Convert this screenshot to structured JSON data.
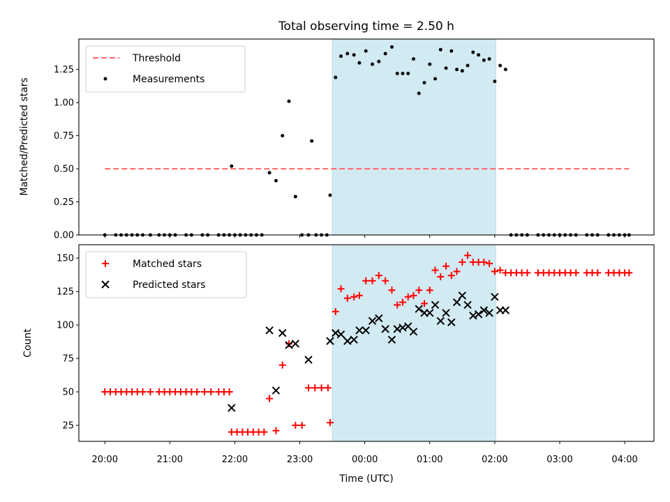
{
  "chart_data": [
    {
      "type": "scatter",
      "title": "Total observing time = 2.50 h",
      "xlabel": "",
      "ylabel": "Matched/Predicted stars",
      "xlim": [
        "19:36",
        "04:27"
      ],
      "ylim": [
        0,
        1.48
      ],
      "y_ticks": [
        "0.00",
        "0.25",
        "0.50",
        "0.75",
        "1.00",
        "1.25"
      ],
      "x_ticks": [
        "20:00",
        "21:00",
        "22:00",
        "23:00",
        "00:00",
        "01:00",
        "02:00",
        "03:00",
        "04:00"
      ],
      "shaded_region": {
        "start": "23:30",
        "end": "02:01",
        "color": "#add8e6"
      },
      "legend_position": "upper-left",
      "threshold": {
        "name": "Threshold",
        "value": 0.5,
        "x_start": "20:00",
        "x_end": "04:04",
        "color": "#ff6666"
      },
      "series": [
        {
          "name": "Measurements",
          "color": "#000000",
          "points": [
            [
              "20:00",
              0
            ],
            [
              "20:10",
              0
            ],
            [
              "20:15",
              0
            ],
            [
              "20:20",
              0
            ],
            [
              "20:25",
              0
            ],
            [
              "20:30",
              0
            ],
            [
              "20:35",
              0
            ],
            [
              "20:42",
              0
            ],
            [
              "20:50",
              0
            ],
            [
              "20:55",
              0
            ],
            [
              "21:00",
              0
            ],
            [
              "21:05",
              0
            ],
            [
              "21:15",
              0
            ],
            [
              "21:20",
              0
            ],
            [
              "21:30",
              0
            ],
            [
              "21:35",
              0
            ],
            [
              "21:45",
              0
            ],
            [
              "21:50",
              0
            ],
            [
              "21:55",
              0
            ],
            [
              "21:57",
              0.52
            ],
            [
              "22:00",
              0
            ],
            [
              "22:05",
              0
            ],
            [
              "22:10",
              0
            ],
            [
              "22:15",
              0
            ],
            [
              "22:20",
              0
            ],
            [
              "22:25",
              0
            ],
            [
              "22:32",
              0.47
            ],
            [
              "22:38",
              0.41
            ],
            [
              "22:44",
              0.75
            ],
            [
              "22:50",
              1.01
            ],
            [
              "22:56",
              0.29
            ],
            [
              "23:02",
              0
            ],
            [
              "23:08",
              0
            ],
            [
              "23:11",
              0.71
            ],
            [
              "23:15",
              0
            ],
            [
              "23:20",
              0
            ],
            [
              "23:25",
              0
            ],
            [
              "23:28",
              0.3
            ],
            [
              "23:33",
              1.19
            ],
            [
              "23:38",
              1.35
            ],
            [
              "23:44",
              1.37
            ],
            [
              "23:50",
              1.36
            ],
            [
              "23:55",
              1.3
            ],
            [
              "00:01",
              1.39
            ],
            [
              "00:07",
              1.29
            ],
            [
              "00:13",
              1.31
            ],
            [
              "00:19",
              1.37
            ],
            [
              "00:25",
              1.42
            ],
            [
              "00:30",
              1.22
            ],
            [
              "00:35",
              1.22
            ],
            [
              "00:40",
              1.22
            ],
            [
              "00:45",
              1.33
            ],
            [
              "00:50",
              1.07
            ],
            [
              "00:55",
              1.15
            ],
            [
              "01:00",
              1.29
            ],
            [
              "01:05",
              1.18
            ],
            [
              "01:10",
              1.4
            ],
            [
              "01:15",
              1.26
            ],
            [
              "01:20",
              1.39
            ],
            [
              "01:25",
              1.25
            ],
            [
              "01:30",
              1.24
            ],
            [
              "01:35",
              1.28
            ],
            [
              "01:40",
              1.38
            ],
            [
              "01:45",
              1.36
            ],
            [
              "01:50",
              1.32
            ],
            [
              "01:55",
              1.33
            ],
            [
              "02:00",
              1.16
            ],
            [
              "02:05",
              1.28
            ],
            [
              "02:10",
              1.25
            ],
            [
              "02:15",
              0
            ],
            [
              "02:20",
              0
            ],
            [
              "02:25",
              0
            ],
            [
              "02:30",
              0
            ],
            [
              "02:40",
              0
            ],
            [
              "02:45",
              0
            ],
            [
              "02:50",
              0
            ],
            [
              "02:55",
              0
            ],
            [
              "03:00",
              0
            ],
            [
              "03:05",
              0
            ],
            [
              "03:10",
              0
            ],
            [
              "03:15",
              0
            ],
            [
              "03:25",
              0
            ],
            [
              "03:30",
              0
            ],
            [
              "03:35",
              0
            ],
            [
              "03:45",
              0
            ],
            [
              "03:50",
              0
            ],
            [
              "03:55",
              0
            ],
            [
              "04:00",
              0
            ],
            [
              "04:04",
              0
            ]
          ]
        }
      ]
    },
    {
      "type": "scatter",
      "title": "",
      "xlabel": "Time (UTC)",
      "ylabel": "Count",
      "xlim": [
        "19:36",
        "04:27"
      ],
      "ylim": [
        13,
        160
      ],
      "y_ticks": [
        "25",
        "50",
        "75",
        "100",
        "125",
        "150"
      ],
      "x_ticks": [
        "20:00",
        "21:00",
        "22:00",
        "23:00",
        "00:00",
        "01:00",
        "02:00",
        "03:00",
        "04:00"
      ],
      "shaded_region": {
        "start": "23:30",
        "end": "02:01",
        "color": "#add8e6"
      },
      "legend_position": "upper-left",
      "series": [
        {
          "name": "Matched stars",
          "color": "#ff0000",
          "marker": "+",
          "points": [
            [
              "20:00",
              50
            ],
            [
              "20:05",
              50
            ],
            [
              "20:10",
              50
            ],
            [
              "20:15",
              50
            ],
            [
              "20:20",
              50
            ],
            [
              "20:25",
              50
            ],
            [
              "20:30",
              50
            ],
            [
              "20:35",
              50
            ],
            [
              "20:42",
              50
            ],
            [
              "20:50",
              50
            ],
            [
              "20:55",
              50
            ],
            [
              "21:00",
              50
            ],
            [
              "21:05",
              50
            ],
            [
              "21:10",
              50
            ],
            [
              "21:15",
              50
            ],
            [
              "21:20",
              50
            ],
            [
              "21:25",
              50
            ],
            [
              "21:32",
              50
            ],
            [
              "21:38",
              50
            ],
            [
              "21:45",
              50
            ],
            [
              "21:50",
              50
            ],
            [
              "21:55",
              50
            ],
            [
              "21:57",
              20
            ],
            [
              "22:02",
              20
            ],
            [
              "22:07",
              20
            ],
            [
              "22:12",
              20
            ],
            [
              "22:17",
              20
            ],
            [
              "22:22",
              20
            ],
            [
              "22:27",
              20
            ],
            [
              "22:32",
              45
            ],
            [
              "22:38",
              21
            ],
            [
              "22:44",
              70
            ],
            [
              "22:50",
              86
            ],
            [
              "22:56",
              25
            ],
            [
              "23:02",
              25
            ],
            [
              "23:08",
              53
            ],
            [
              "23:14",
              53
            ],
            [
              "23:20",
              53
            ],
            [
              "23:26",
              53
            ],
            [
              "23:28",
              27
            ],
            [
              "23:33",
              110
            ],
            [
              "23:38",
              127
            ],
            [
              "23:44",
              120
            ],
            [
              "23:50",
              121
            ],
            [
              "23:55",
              122
            ],
            [
              "00:01",
              133
            ],
            [
              "00:07",
              133
            ],
            [
              "00:13",
              137
            ],
            [
              "00:19",
              133
            ],
            [
              "00:25",
              126
            ],
            [
              "00:30",
              115
            ],
            [
              "00:35",
              117
            ],
            [
              "00:40",
              121
            ],
            [
              "00:45",
              122
            ],
            [
              "00:50",
              126
            ],
            [
              "00:55",
              116
            ],
            [
              "01:00",
              126
            ],
            [
              "01:05",
              141
            ],
            [
              "01:10",
              136
            ],
            [
              "01:15",
              144
            ],
            [
              "01:20",
              137
            ],
            [
              "01:25",
              140
            ],
            [
              "01:30",
              147
            ],
            [
              "01:35",
              152
            ],
            [
              "01:40",
              147
            ],
            [
              "01:45",
              147
            ],
            [
              "01:50",
              147
            ],
            [
              "01:55",
              146
            ],
            [
              "02:00",
              140
            ],
            [
              "02:05",
              141
            ],
            [
              "02:10",
              139
            ],
            [
              "02:15",
              139
            ],
            [
              "02:20",
              139
            ],
            [
              "02:25",
              139
            ],
            [
              "02:30",
              139
            ],
            [
              "02:40",
              139
            ],
            [
              "02:45",
              139
            ],
            [
              "02:50",
              139
            ],
            [
              "02:55",
              139
            ],
            [
              "03:00",
              139
            ],
            [
              "03:05",
              139
            ],
            [
              "03:10",
              139
            ],
            [
              "03:15",
              139
            ],
            [
              "03:25",
              139
            ],
            [
              "03:30",
              139
            ],
            [
              "03:35",
              139
            ],
            [
              "03:45",
              139
            ],
            [
              "03:50",
              139
            ],
            [
              "03:55",
              139
            ],
            [
              "04:00",
              139
            ],
            [
              "04:04",
              139
            ]
          ]
        },
        {
          "name": "Predicted stars",
          "color": "#000000",
          "marker": "x",
          "points": [
            [
              "21:57",
              38
            ],
            [
              "22:32",
              96
            ],
            [
              "22:38",
              51
            ],
            [
              "22:44",
              94
            ],
            [
              "22:50",
              85
            ],
            [
              "22:56",
              86
            ],
            [
              "23:08",
              74
            ],
            [
              "23:28",
              88
            ],
            [
              "23:33",
              94
            ],
            [
              "23:38",
              93
            ],
            [
              "23:44",
              88
            ],
            [
              "23:50",
              89
            ],
            [
              "23:55",
              96
            ],
            [
              "00:01",
              96
            ],
            [
              "00:07",
              103
            ],
            [
              "00:13",
              105
            ],
            [
              "00:19",
              97
            ],
            [
              "00:25",
              89
            ],
            [
              "00:30",
              97
            ],
            [
              "00:35",
              98
            ],
            [
              "00:40",
              99
            ],
            [
              "00:45",
              95
            ],
            [
              "00:50",
              112
            ],
            [
              "00:55",
              109
            ],
            [
              "01:00",
              109
            ],
            [
              "01:05",
              115
            ],
            [
              "01:10",
              103
            ],
            [
              "01:15",
              109
            ],
            [
              "01:20",
              102
            ],
            [
              "01:25",
              117
            ],
            [
              "01:30",
              122
            ],
            [
              "01:35",
              115
            ],
            [
              "01:40",
              107
            ],
            [
              "01:45",
              108
            ],
            [
              "01:50",
              111
            ],
            [
              "01:55",
              109
            ],
            [
              "02:00",
              121
            ],
            [
              "02:05",
              111
            ],
            [
              "02:10",
              111
            ]
          ]
        }
      ]
    }
  ]
}
